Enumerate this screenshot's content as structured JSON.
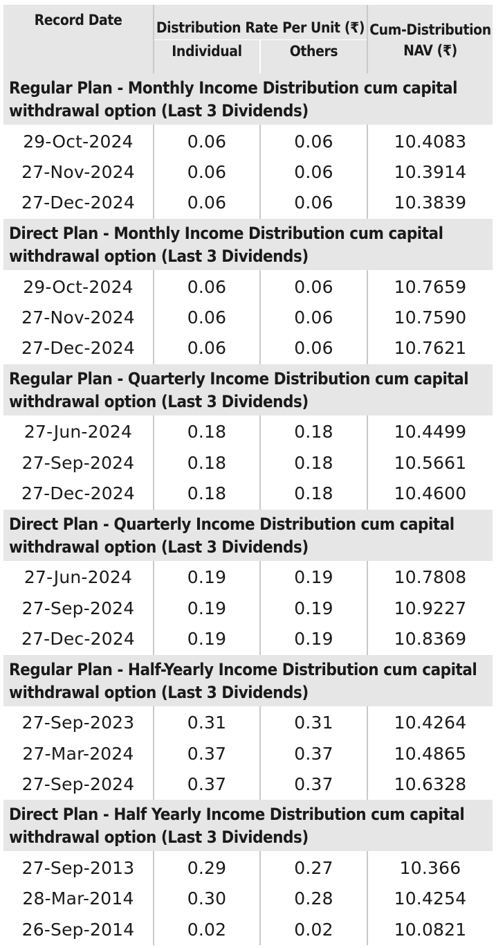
{
  "header": {
    "record_date": "Record Date",
    "distribution_rate": "Distribution Rate Per Unit  (₹)",
    "individual": "Individual",
    "others": "Others",
    "cum_nav_line1": "Cum-Distribution",
    "cum_nav_line2": "NAV (₹)"
  },
  "sections": [
    {
      "title": "Regular Plan - Monthly Income Distribution cum capital withdrawal option (Last 3 Dividends)",
      "rows": [
        {
          "date": "29-Oct-2024",
          "individual": "0.06",
          "others": "0.06",
          "nav": "10.4083"
        },
        {
          "date": "27-Nov-2024",
          "individual": "0.06",
          "others": "0.06",
          "nav": "10.3914"
        },
        {
          "date": "27-Dec-2024",
          "individual": "0.06",
          "others": "0.06",
          "nav": "10.3839"
        }
      ]
    },
    {
      "title": "Direct Plan - Monthly Income Distribution cum capital withdrawal option (Last 3 Dividends)",
      "rows": [
        {
          "date": "29-Oct-2024",
          "individual": "0.06",
          "others": "0.06",
          "nav": "10.7659"
        },
        {
          "date": "27-Nov-2024",
          "individual": "0.06",
          "others": "0.06",
          "nav": "10.7590"
        },
        {
          "date": "27-Dec-2024",
          "individual": "0.06",
          "others": "0.06",
          "nav": "10.7621"
        }
      ]
    },
    {
      "title": "Regular Plan - Quarterly Income Distribution cum capital withdrawal option (Last 3 Dividends)",
      "rows": [
        {
          "date": "27-Jun-2024",
          "individual": "0.18",
          "others": "0.18",
          "nav": "10.4499"
        },
        {
          "date": "27-Sep-2024",
          "individual": "0.18",
          "others": "0.18",
          "nav": "10.5661"
        },
        {
          "date": "27-Dec-2024",
          "individual": "0.18",
          "others": "0.18",
          "nav": "10.4600"
        }
      ]
    },
    {
      "title": "Direct Plan - Quarterly Income Distribution cum capital withdrawal option (Last 3 Dividends)",
      "rows": [
        {
          "date": "27-Jun-2024",
          "individual": "0.19",
          "others": "0.19",
          "nav": "10.7808"
        },
        {
          "date": "27-Sep-2024",
          "individual": "0.19",
          "others": "0.19",
          "nav": "10.9227"
        },
        {
          "date": "27-Dec-2024",
          "individual": "0.19",
          "others": "0.19",
          "nav": "10.8369"
        }
      ]
    },
    {
      "title": "Regular Plan - Half-Yearly Income Distribution cum capital withdrawal option (Last 3 Dividends)",
      "rows": [
        {
          "date": "27-Sep-2023",
          "individual": "0.31",
          "others": "0.31",
          "nav": "10.4264"
        },
        {
          "date": "27-Mar-2024",
          "individual": "0.37",
          "others": "0.37",
          "nav": "10.4865"
        },
        {
          "date": "27-Sep-2024",
          "individual": "0.37",
          "others": "0.37",
          "nav": "10.6328"
        }
      ]
    },
    {
      "title": "Direct Plan - Half Yearly Income Distribution cum capital withdrawal option (Last 3 Dividends)",
      "rows": [
        {
          "date": "27-Sep-2013",
          "individual": "0.29",
          "others": "0.27",
          "nav": "10.366"
        },
        {
          "date": "28-Mar-2014",
          "individual": "0.30",
          "others": "0.28",
          "nav": "10.4254"
        },
        {
          "date": "26-Sep-2014",
          "individual": "0.02",
          "others": "0.02",
          "nav": "10.0821"
        }
      ]
    }
  ]
}
